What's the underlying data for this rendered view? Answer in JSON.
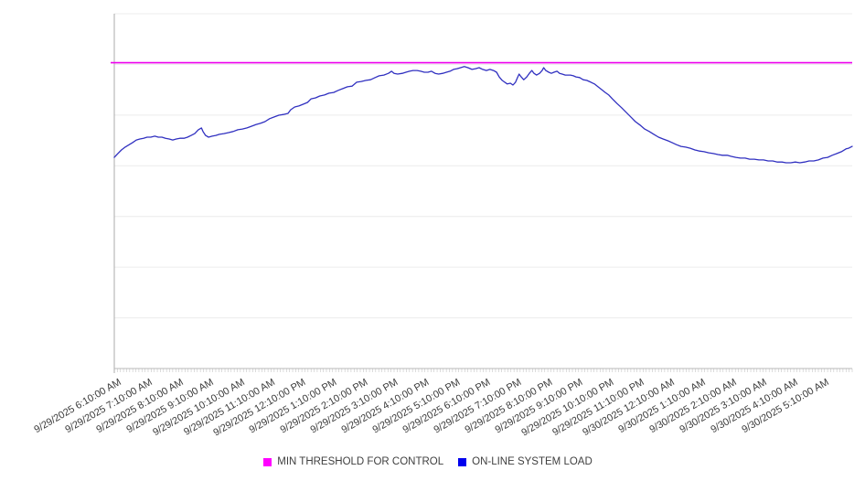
{
  "legend": {
    "items": [
      {
        "label": "MIN THRESHOLD FOR CONTROL",
        "color": "#ff00ff"
      },
      {
        "label": "ON-LINE SYSTEM LOAD",
        "color": "#0000ee"
      }
    ]
  },
  "chart_data": {
    "type": "line",
    "title": "",
    "xlabel": "",
    "ylabel": "",
    "y_axis_labels_visible": false,
    "grid": "horizontal",
    "horizontal_gridline_intervals": 7,
    "x_range_minutes": [
      0,
      1440
    ],
    "x_minor_tick_minutes": 6,
    "y_range": [
      0,
      100
    ],
    "legend_position": "bottom",
    "x_axis_labels": [
      "9/29/2025 6:10:00 AM",
      "9/29/2025 7:10:00 AM",
      "9/29/2025 8:10:00 AM",
      "9/29/2025 9:10:00 AM",
      "9/29/2025 10:10:00 AM",
      "9/29/2025 11:10:00 AM",
      "9/29/2025 12:10:00 PM",
      "9/29/2025 1:10:00 PM",
      "9/29/2025 2:10:00 PM",
      "9/29/2025 3:10:00 PM",
      "9/29/2025 4:10:00 PM",
      "9/29/2025 5:10:00 PM",
      "9/29/2025 6:10:00 PM",
      "9/29/2025 7:10:00 PM",
      "9/29/2025 8:10:00 PM",
      "9/29/2025 9:10:00 PM",
      "9/29/2025 10:10:00 PM",
      "9/29/2025 11:10:00 PM",
      "9/30/2025 12:10:00 AM",
      "9/30/2025 1:10:00 AM",
      "9/30/2025 2:10:00 AM",
      "9/30/2025 3:10:00 AM",
      "9/30/2025 4:10:00 AM",
      "9/30/2025 5:10:00 AM"
    ],
    "series": [
      {
        "name": "MIN THRESHOLD FOR CONTROL",
        "type": "horizontal-threshold",
        "color": "#ee00ee",
        "value": 86.2
      },
      {
        "name": "ON-LINE SYSTEM LOAD",
        "type": "line",
        "color": "#3030c0",
        "x_unit": "minutes since 9/29/2025 6:10:00 AM",
        "y_unit": "load (normalized 0-100, y axis unlabeled)",
        "points": [
          [
            0,
            59.5
          ],
          [
            7,
            60.6
          ],
          [
            14,
            61.6
          ],
          [
            21,
            62.4
          ],
          [
            29,
            63.1
          ],
          [
            36,
            63.7
          ],
          [
            43,
            64.4
          ],
          [
            50,
            64.7
          ],
          [
            57,
            64.9
          ],
          [
            64,
            65.2
          ],
          [
            71,
            65.2
          ],
          [
            79,
            65.5
          ],
          [
            86,
            65.2
          ],
          [
            93,
            65.2
          ],
          [
            100,
            64.9
          ],
          [
            107,
            64.7
          ],
          [
            114,
            64.4
          ],
          [
            121,
            64.7
          ],
          [
            128,
            64.9
          ],
          [
            136,
            64.9
          ],
          [
            143,
            65.2
          ],
          [
            150,
            65.7
          ],
          [
            157,
            66.2
          ],
          [
            164,
            67.3
          ],
          [
            170,
            67.8
          ],
          [
            173,
            66.8
          ],
          [
            178,
            65.7
          ],
          [
            184,
            65.2
          ],
          [
            191,
            65.5
          ],
          [
            198,
            65.7
          ],
          [
            205,
            66.0
          ],
          [
            214,
            66.2
          ],
          [
            223,
            66.5
          ],
          [
            232,
            66.8
          ],
          [
            241,
            67.3
          ],
          [
            250,
            67.5
          ],
          [
            259,
            67.8
          ],
          [
            268,
            68.3
          ],
          [
            277,
            68.8
          ],
          [
            285,
            69.1
          ],
          [
            294,
            69.6
          ],
          [
            303,
            70.4
          ],
          [
            312,
            70.9
          ],
          [
            321,
            71.4
          ],
          [
            330,
            71.6
          ],
          [
            339,
            71.9
          ],
          [
            344,
            72.9
          ],
          [
            352,
            73.7
          ],
          [
            360,
            74.0
          ],
          [
            369,
            74.5
          ],
          [
            377,
            75.0
          ],
          [
            384,
            76.0
          ],
          [
            393,
            76.3
          ],
          [
            401,
            76.8
          ],
          [
            410,
            77.1
          ],
          [
            419,
            77.6
          ],
          [
            428,
            77.8
          ],
          [
            437,
            78.4
          ],
          [
            446,
            78.9
          ],
          [
            455,
            79.4
          ],
          [
            464,
            79.6
          ],
          [
            473,
            80.7
          ],
          [
            482,
            80.9
          ],
          [
            491,
            81.2
          ],
          [
            500,
            81.4
          ],
          [
            509,
            82.0
          ],
          [
            517,
            82.5
          ],
          [
            526,
            82.7
          ],
          [
            535,
            83.2
          ],
          [
            541,
            83.8
          ],
          [
            546,
            83.2
          ],
          [
            553,
            83.0
          ],
          [
            562,
            83.2
          ],
          [
            569,
            83.5
          ],
          [
            576,
            83.8
          ],
          [
            583,
            84.0
          ],
          [
            591,
            84.0
          ],
          [
            598,
            83.8
          ],
          [
            605,
            83.5
          ],
          [
            612,
            83.5
          ],
          [
            619,
            83.8
          ],
          [
            626,
            83.2
          ],
          [
            633,
            83.0
          ],
          [
            641,
            83.2
          ],
          [
            648,
            83.5
          ],
          [
            655,
            83.8
          ],
          [
            662,
            84.3
          ],
          [
            669,
            84.5
          ],
          [
            676,
            84.8
          ],
          [
            683,
            85.1
          ],
          [
            690,
            84.8
          ],
          [
            698,
            84.3
          ],
          [
            705,
            84.5
          ],
          [
            712,
            84.8
          ],
          [
            719,
            84.3
          ],
          [
            726,
            84.0
          ],
          [
            733,
            84.3
          ],
          [
            740,
            84.0
          ],
          [
            746,
            83.5
          ],
          [
            751,
            82.2
          ],
          [
            757,
            81.2
          ],
          [
            762,
            80.7
          ],
          [
            767,
            80.2
          ],
          [
            773,
            80.4
          ],
          [
            778,
            79.9
          ],
          [
            783,
            80.7
          ],
          [
            787,
            82.0
          ],
          [
            790,
            83.0
          ],
          [
            794,
            82.2
          ],
          [
            799,
            81.4
          ],
          [
            805,
            82.2
          ],
          [
            810,
            83.2
          ],
          [
            815,
            84.0
          ],
          [
            819,
            83.2
          ],
          [
            824,
            82.7
          ],
          [
            830,
            83.2
          ],
          [
            835,
            84.0
          ],
          [
            838,
            84.8
          ],
          [
            842,
            84.0
          ],
          [
            848,
            83.5
          ],
          [
            853,
            83.2
          ],
          [
            858,
            83.5
          ],
          [
            864,
            83.8
          ],
          [
            869,
            83.2
          ],
          [
            874,
            83.0
          ],
          [
            880,
            82.7
          ],
          [
            885,
            82.7
          ],
          [
            890,
            82.7
          ],
          [
            896,
            82.5
          ],
          [
            901,
            82.2
          ],
          [
            908,
            82.0
          ],
          [
            915,
            81.4
          ],
          [
            922,
            81.2
          ],
          [
            930,
            80.7
          ],
          [
            937,
            80.2
          ],
          [
            944,
            79.4
          ],
          [
            951,
            78.6
          ],
          [
            958,
            77.8
          ],
          [
            965,
            77.1
          ],
          [
            972,
            76.0
          ],
          [
            981,
            74.7
          ],
          [
            990,
            73.5
          ],
          [
            999,
            72.2
          ],
          [
            1008,
            70.9
          ],
          [
            1017,
            69.6
          ],
          [
            1026,
            68.6
          ],
          [
            1035,
            67.5
          ],
          [
            1044,
            66.8
          ],
          [
            1053,
            66.0
          ],
          [
            1062,
            65.2
          ],
          [
            1071,
            64.7
          ],
          [
            1080,
            64.2
          ],
          [
            1088,
            63.7
          ],
          [
            1097,
            63.1
          ],
          [
            1106,
            62.6
          ],
          [
            1115,
            62.4
          ],
          [
            1124,
            62.1
          ],
          [
            1133,
            61.6
          ],
          [
            1142,
            61.3
          ],
          [
            1151,
            61.1
          ],
          [
            1160,
            60.8
          ],
          [
            1169,
            60.6
          ],
          [
            1178,
            60.3
          ],
          [
            1187,
            60.1
          ],
          [
            1196,
            60.1
          ],
          [
            1204,
            59.8
          ],
          [
            1213,
            59.5
          ],
          [
            1222,
            59.3
          ],
          [
            1231,
            59.3
          ],
          [
            1240,
            59.0
          ],
          [
            1249,
            59.0
          ],
          [
            1258,
            58.8
          ],
          [
            1267,
            58.8
          ],
          [
            1276,
            58.5
          ],
          [
            1285,
            58.5
          ],
          [
            1294,
            58.2
          ],
          [
            1303,
            58.2
          ],
          [
            1311,
            58.0
          ],
          [
            1320,
            58.0
          ],
          [
            1329,
            58.2
          ],
          [
            1338,
            58.0
          ],
          [
            1347,
            58.2
          ],
          [
            1356,
            58.5
          ],
          [
            1365,
            58.5
          ],
          [
            1374,
            58.8
          ],
          [
            1383,
            59.3
          ],
          [
            1392,
            59.5
          ],
          [
            1401,
            60.1
          ],
          [
            1410,
            60.6
          ],
          [
            1419,
            61.1
          ],
          [
            1428,
            61.9
          ],
          [
            1433,
            62.1
          ],
          [
            1440,
            62.6
          ]
        ]
      }
    ]
  }
}
